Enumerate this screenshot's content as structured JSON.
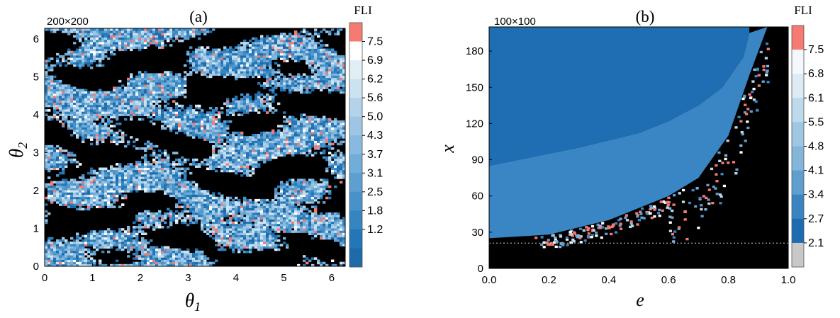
{
  "chart_data": [
    {
      "type": "heatmap",
      "panel_label": "(a)",
      "resolution_label": "200×200",
      "xlabel": "θ1",
      "ylabel": "θ2",
      "xlim": [
        0,
        6.2832
      ],
      "ylim": [
        0,
        6.2832
      ],
      "xticks": [
        0,
        1,
        2,
        3,
        4,
        5,
        6
      ],
      "yticks": [
        0,
        1,
        2,
        3,
        4,
        5,
        6
      ],
      "grid": false,
      "colorbar": {
        "title": "FLI",
        "tick_labels": [
          "7.5",
          "6.9",
          "6.2",
          "5.6",
          "5.0",
          "4.3",
          "3.7",
          "3.1",
          "2.5",
          "1.8",
          "1.2"
        ],
        "colors_top_to_bottom": [
          "#f47a72",
          "#ffffff",
          "#e2eef6",
          "#cde2ef",
          "#b3d3ea",
          "#9ec6e4",
          "#88badf",
          "#72add8",
          "#5c9fd0",
          "#4992c9",
          "#3585c1",
          "#2377b8",
          "#1f6aa8"
        ]
      },
      "background_color": "#000000",
      "description_of_values": "FLI map over (θ1, θ2); dark regions are low values, streaks of blue with scattered red high-FLI points"
    },
    {
      "type": "heatmap",
      "panel_label": "(b)",
      "resolution_label": "100×100",
      "xlabel": "e",
      "ylabel": "x",
      "xlim": [
        0,
        1.0
      ],
      "ylim": [
        0,
        200
      ],
      "xticks": [
        "0.0",
        "0.2",
        "0.4",
        "0.6",
        "0.8",
        "1.0"
      ],
      "yticks": [
        "0",
        "30",
        "60",
        "90",
        "120",
        "150",
        "180"
      ],
      "grid": false,
      "dotted_line_y": 21,
      "colorbar": {
        "title": "FLI",
        "tick_labels": [
          "7.5",
          "6.8",
          "6.1",
          "5.5",
          "4.8",
          "4.1",
          "3.4",
          "2.7",
          "2.1"
        ],
        "colors_top_to_bottom": [
          "#f47a72",
          "#f4f8fa",
          "#dcebf4",
          "#bdd9ec",
          "#9fc6e3",
          "#84b6dc",
          "#5f9fd0",
          "#3a85c1",
          "#1c6cb1",
          "#c8c8c8"
        ]
      },
      "regions": [
        {
          "name": "upper",
          "color": "#1f6db3",
          "boundary_x_at_e": [
            [
              0.0,
              85
            ],
            [
              0.3,
              100
            ],
            [
              0.5,
              112
            ],
            [
              0.6,
              122
            ],
            [
              0.7,
              135
            ],
            [
              0.78,
              150
            ],
            [
              0.85,
              175
            ],
            [
              0.87,
              195
            ]
          ]
        },
        {
          "name": "middle",
          "color": "#3a85c4",
          "lower_boundary_x_at_e": [
            [
              0.0,
              25
            ],
            [
              0.2,
              28
            ],
            [
              0.4,
              40
            ],
            [
              0.6,
              60
            ],
            [
              0.7,
              75
            ],
            [
              0.8,
              110
            ],
            [
              0.87,
              160
            ],
            [
              0.93,
              200
            ]
          ]
        },
        {
          "name": "chaotic",
          "color": "#000000"
        }
      ]
    }
  ]
}
